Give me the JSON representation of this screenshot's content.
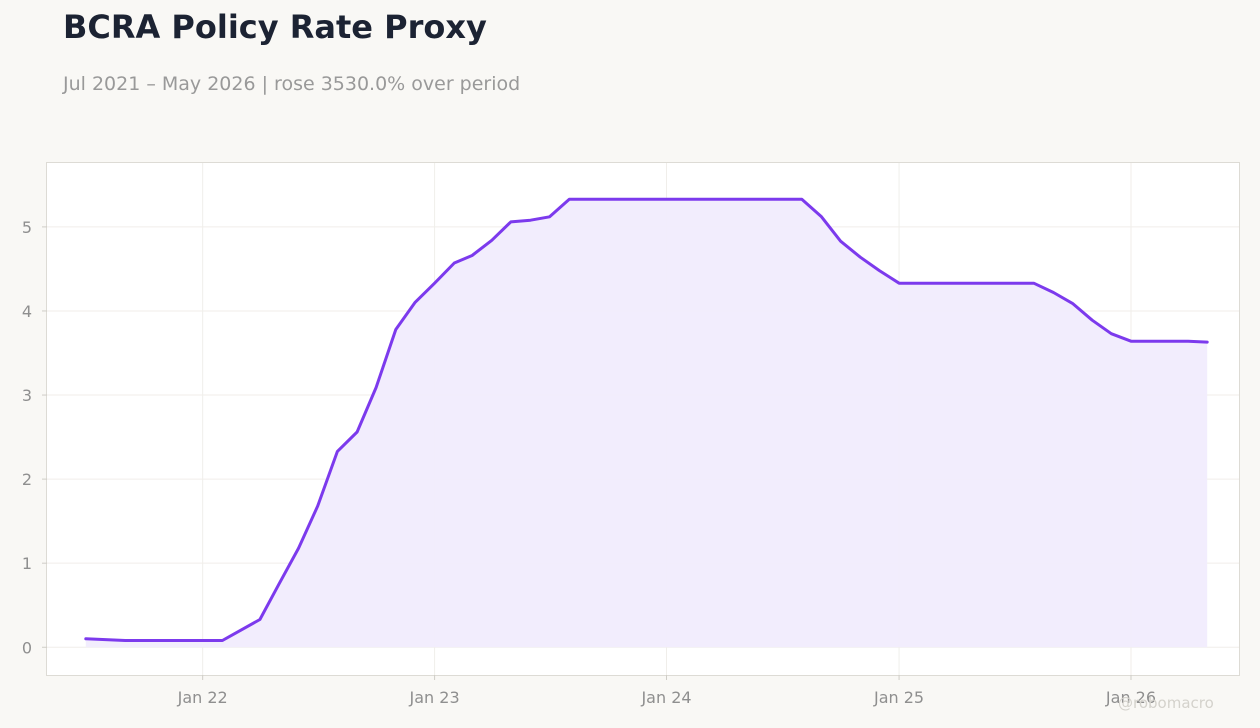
{
  "title": "BCRA Policy Rate Proxy",
  "subtitle": "Jul 2021 – May 2026 | rose 3530.0% over period",
  "watermark": "@robomacro",
  "colors": {
    "background": "#f9f8f5",
    "plot_background": "#ffffff",
    "line": "#7c3aed",
    "fill": "#f1ecfd",
    "grid": "#f0eeea",
    "axis_text": "#8f8f8f",
    "title": "#1c2333"
  },
  "chart_data": {
    "type": "area",
    "title": "BCRA Policy Rate Proxy",
    "subtitle": "Jul 2021 – May 2026 | rose 3530.0% over period",
    "xlabel": "",
    "ylabel": "",
    "x_tick_labels": [
      "Jan 22",
      "Jan 23",
      "Jan 24",
      "Jan 25",
      "Jan 26"
    ],
    "x_ticks": [
      "2022-01-01",
      "2023-01-01",
      "2024-01-01",
      "2025-01-01",
      "2026-01-01"
    ],
    "y_tick_labels": [
      "0",
      "1",
      "2",
      "3",
      "4",
      "5"
    ],
    "y_ticks": [
      0,
      1,
      2,
      3,
      4,
      5
    ],
    "xlim": [
      "2021-05-01",
      "2026-06-20"
    ],
    "ylim": [
      -0.33,
      5.76
    ],
    "grid": true,
    "legend": "none",
    "series": [
      {
        "x": [
          "2021-07-01",
          "2021-09-01",
          "2021-10-01",
          "2021-11-01",
          "2021-12-01",
          "2022-01-01",
          "2022-02-01",
          "2022-04-01",
          "2022-05-01",
          "2022-06-01",
          "2022-07-01",
          "2022-08-01",
          "2022-09-01",
          "2022-10-01",
          "2022-11-01",
          "2022-12-01",
          "2023-01-01",
          "2023-02-01",
          "2023-03-01",
          "2023-04-01",
          "2023-05-01",
          "2023-06-01",
          "2023-07-01",
          "2023-08-01",
          "2024-01-01",
          "2024-08-01",
          "2024-09-01",
          "2024-10-01",
          "2024-11-01",
          "2024-12-01",
          "2025-01-01",
          "2025-08-01",
          "2025-09-01",
          "2025-10-01",
          "2025-11-01",
          "2025-12-01",
          "2026-01-01",
          "2026-04-01",
          "2026-05-01"
        ],
        "values": [
          0.1,
          0.08,
          0.08,
          0.08,
          0.08,
          0.08,
          0.08,
          0.33,
          0.75,
          1.18,
          1.68,
          2.33,
          2.56,
          3.09,
          3.78,
          4.1,
          4.33,
          4.57,
          4.66,
          4.84,
          5.06,
          5.08,
          5.12,
          5.33,
          5.33,
          5.33,
          5.12,
          4.83,
          4.64,
          4.48,
          4.33,
          4.33,
          4.22,
          4.09,
          3.89,
          3.73,
          3.64,
          3.64,
          3.63
        ]
      }
    ]
  }
}
